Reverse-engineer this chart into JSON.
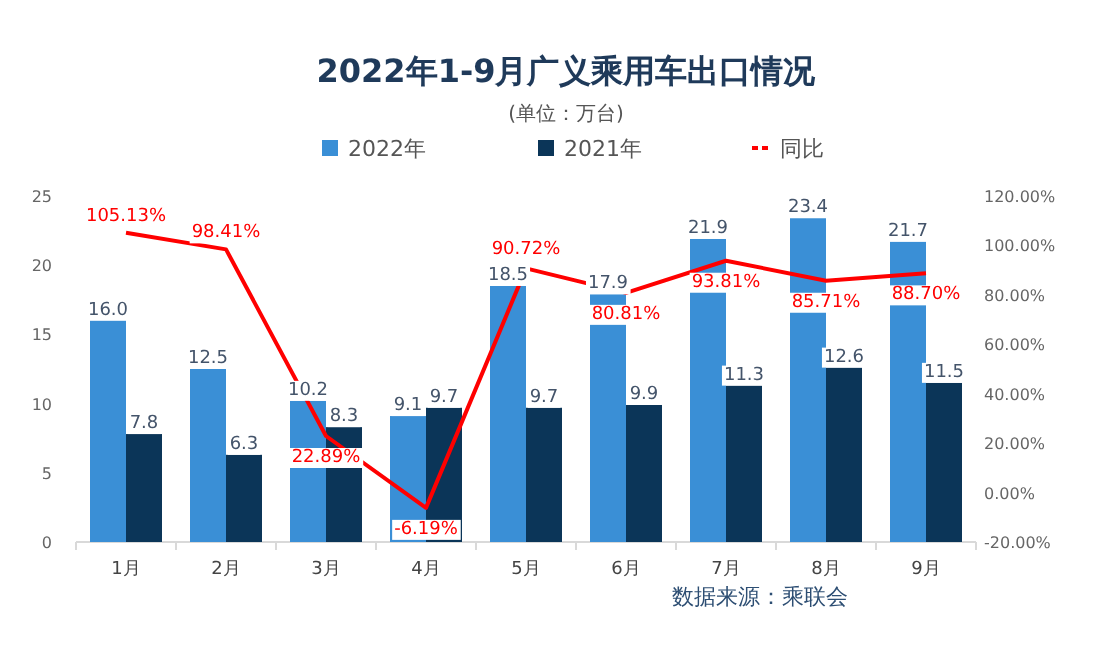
{
  "chart_data": {
    "type": "bar",
    "title": "2022年1-9月广义乘用车出口情况",
    "subtitle": "(单位：万台)",
    "categories": [
      "1月",
      "2月",
      "3月",
      "4月",
      "5月",
      "6月",
      "7月",
      "8月",
      "9月"
    ],
    "series": [
      {
        "name": "2022年",
        "color": "#3a8fd6",
        "values": [
          16.0,
          12.5,
          10.2,
          9.1,
          18.5,
          17.9,
          21.9,
          23.4,
          21.7
        ],
        "value_labels": [
          "16.0",
          "12.5",
          "10.2",
          "9.1",
          "18.5",
          "17.9",
          "21.9",
          "23.4",
          "21.7"
        ]
      },
      {
        "name": "2021年",
        "color": "#0b3558",
        "values": [
          7.8,
          6.3,
          8.3,
          9.7,
          9.7,
          9.9,
          11.3,
          12.6,
          11.5
        ],
        "value_labels": [
          "7.8",
          "6.3",
          "8.3",
          "9.7",
          "9.7",
          "9.9",
          "11.3",
          "12.6",
          "11.5"
        ]
      },
      {
        "name": "同比",
        "type": "line",
        "axis": "y2",
        "color": "#ff0000",
        "values": [
          105.13,
          98.41,
          22.89,
          -6.19,
          90.72,
          80.81,
          93.81,
          85.71,
          88.7
        ],
        "value_labels": [
          "105.13%",
          "98.41%",
          "22.89%",
          "-6.19%",
          "90.72%",
          "80.81%",
          "93.81%",
          "85.71%",
          "88.70%"
        ]
      }
    ],
    "ylim": [
      0,
      25
    ],
    "yticks": [
      0,
      5,
      10,
      15,
      20,
      25
    ],
    "y2lim": [
      -20,
      120
    ],
    "y2ticks": [
      {
        "value": -20,
        "label": "-20.00%"
      },
      {
        "value": 0,
        "label": "0.00%"
      },
      {
        "value": 20,
        "label": "20.00%"
      },
      {
        "value": 40,
        "label": "40.00%"
      },
      {
        "value": 60,
        "label": "60.00%"
      },
      {
        "value": 80,
        "label": "80.00%"
      },
      {
        "value": 100,
        "label": "100.00%"
      },
      {
        "value": 120,
        "label": "120.00%"
      }
    ],
    "legend": "top",
    "grid": false,
    "annotations": [
      "数据来源：乘联会"
    ]
  }
}
